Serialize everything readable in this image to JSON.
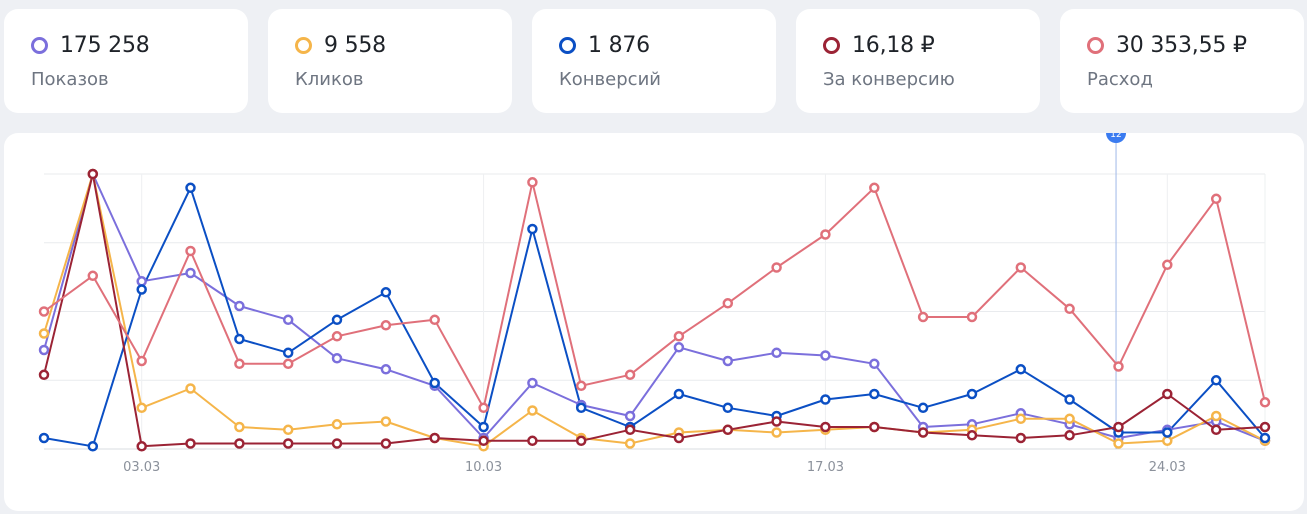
{
  "cards": [
    {
      "value": "175 258",
      "label": "Показов",
      "color": "#7b6fdc"
    },
    {
      "value": "9 558",
      "label": "Кликов",
      "color": "#f5b54a"
    },
    {
      "value": "1 876",
      "label": "Конверсий",
      "color": "#0b4fc4"
    },
    {
      "value": "16,18 ₽",
      "label": "За конверсию",
      "color": "#9b2335"
    },
    {
      "value": "30 353,55 ₽",
      "label": "Расход",
      "color": "#e0707a"
    }
  ],
  "chart_data": {
    "type": "line",
    "x": [
      "01.03",
      "02.03",
      "03.03",
      "04.03",
      "05.03",
      "06.03",
      "07.03",
      "08.03",
      "09.03",
      "10.03",
      "11.03",
      "12.03",
      "13.03",
      "14.03",
      "15.03",
      "16.03",
      "17.03",
      "18.03",
      "19.03",
      "20.03",
      "21.03",
      "22.03",
      "23.03",
      "24.03",
      "25.03",
      "26.03"
    ],
    "x_tick_labels": [
      "03.03",
      "10.03",
      "17.03",
      "24.03"
    ],
    "ylim": [
      0,
      100
    ],
    "grid": true,
    "hover_marker": {
      "label": "12",
      "x_index": 22
    },
    "series": [
      {
        "color": "#7b6fdc",
        "values": [
          36,
          100,
          61,
          64,
          52,
          47,
          33,
          29,
          23,
          4,
          24,
          16,
          12,
          37,
          32,
          35,
          34,
          31,
          8,
          9,
          13,
          9,
          4,
          7,
          10,
          3
        ]
      },
      {
        "color": "#f5b54a",
        "values": [
          42,
          100,
          15,
          22,
          8,
          7,
          9,
          10,
          4,
          1,
          14,
          4,
          2,
          6,
          7,
          6,
          7,
          8,
          6,
          7,
          11,
          11,
          2,
          3,
          12,
          3
        ]
      },
      {
        "color": "#0b4fc4",
        "values": [
          4,
          1,
          58,
          95,
          40,
          35,
          47,
          57,
          24,
          8,
          80,
          15,
          8,
          20,
          15,
          12,
          18,
          20,
          15,
          20,
          29,
          18,
          6,
          6,
          25,
          4
        ]
      },
      {
        "color": "#9b2335",
        "values": [
          27,
          100,
          1,
          2,
          2,
          2,
          2,
          2,
          4,
          3,
          3,
          3,
          7,
          4,
          7,
          10,
          8,
          8,
          6,
          5,
          4,
          5,
          8,
          20,
          7,
          8
        ]
      },
      {
        "color": "#e0707a",
        "values": [
          50,
          63,
          32,
          72,
          31,
          31,
          41,
          45,
          47,
          15,
          97,
          23,
          27,
          41,
          53,
          66,
          78,
          95,
          48,
          48,
          66,
          51,
          30,
          67,
          91,
          17
        ]
      }
    ]
  }
}
